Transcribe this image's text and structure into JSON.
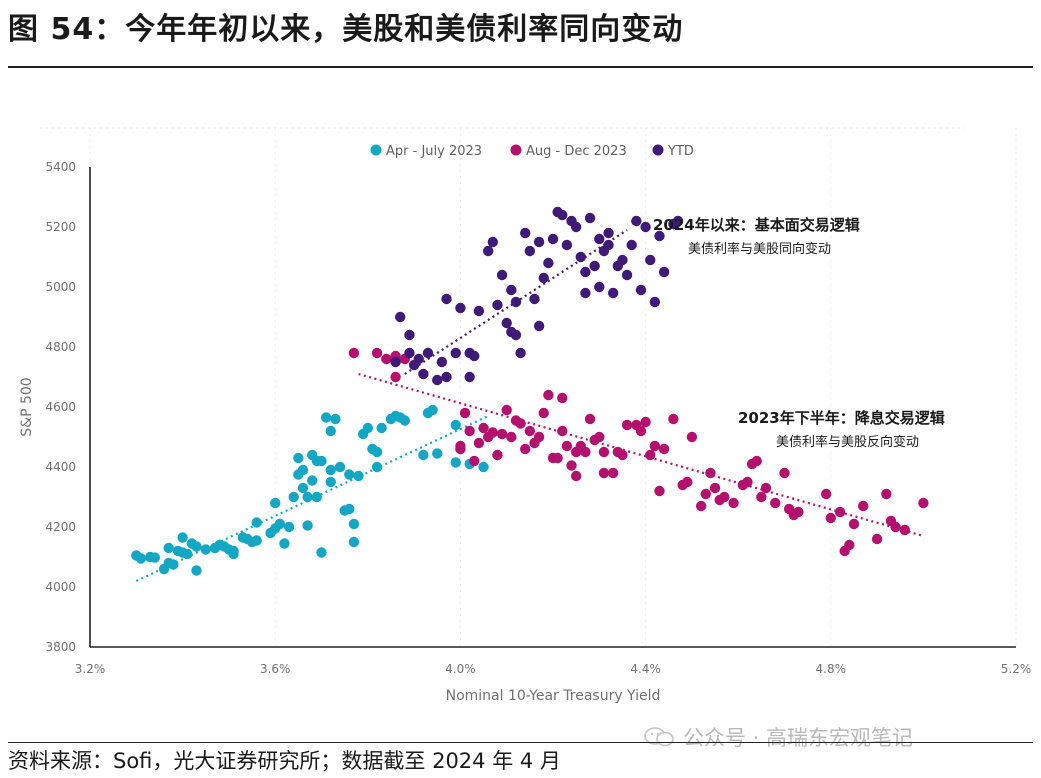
{
  "header": {
    "title": "图 54：今年年初以来，美股和美债利率同向变动"
  },
  "footer": {
    "source": "资料来源：Sofi，光大证券研究所；数据截至 2024 年 4 月",
    "watermark": "公众号 · 高瑞东宏观笔记"
  },
  "colors": {
    "series1": "#14a7c4",
    "series2": "#b3116d",
    "series3": "#3f1a78"
  },
  "chart_data": {
    "type": "scatter",
    "title": "",
    "xlabel": "Nominal 10-Year Treasury Yield",
    "ylabel": "S&P 500",
    "xlim": [
      3.2,
      5.2
    ],
    "ylim": [
      3800,
      5400
    ],
    "xticks": [
      3.2,
      3.6,
      4.0,
      4.4,
      4.8,
      5.2
    ],
    "xtick_labels": [
      "3.2%",
      "3.6%",
      "4.0%",
      "4.4%",
      "4.8%",
      "5.2%"
    ],
    "yticks": [
      3800,
      4000,
      4200,
      4400,
      4600,
      4800,
      5000,
      5200,
      5400
    ],
    "ytick_labels": [
      "3800",
      "4000",
      "4200",
      "4400",
      "4600",
      "4800",
      "5000",
      "5200",
      "5400"
    ],
    "legend": [
      "Apr - July 2023",
      "Aug - Dec 2023",
      "YTD"
    ],
    "series": [
      {
        "name": "Apr - July 2023",
        "points": [
          [
            3.3,
            4105
          ],
          [
            3.31,
            4095
          ],
          [
            3.33,
            4100
          ],
          [
            3.34,
            4098
          ],
          [
            3.36,
            4060
          ],
          [
            3.37,
            4130
          ],
          [
            3.37,
            4080
          ],
          [
            3.38,
            4075
          ],
          [
            3.39,
            4120
          ],
          [
            3.4,
            4115
          ],
          [
            3.4,
            4165
          ],
          [
            3.41,
            4110
          ],
          [
            3.42,
            4145
          ],
          [
            3.43,
            4135
          ],
          [
            3.43,
            4055
          ],
          [
            3.45,
            4125
          ],
          [
            3.47,
            4130
          ],
          [
            3.48,
            4140
          ],
          [
            3.49,
            4135
          ],
          [
            3.5,
            4125
          ],
          [
            3.51,
            4120
          ],
          [
            3.51,
            4110
          ],
          [
            3.53,
            4165
          ],
          [
            3.54,
            4160
          ],
          [
            3.55,
            4150
          ],
          [
            3.56,
            4155
          ],
          [
            3.56,
            4215
          ],
          [
            3.59,
            4180
          ],
          [
            3.6,
            4195
          ],
          [
            3.6,
            4280
          ],
          [
            3.61,
            4210
          ],
          [
            3.62,
            4145
          ],
          [
            3.63,
            4200
          ],
          [
            3.64,
            4300
          ],
          [
            3.65,
            4375
          ],
          [
            3.65,
            4430
          ],
          [
            3.66,
            4390
          ],
          [
            3.66,
            4330
          ],
          [
            3.67,
            4300
          ],
          [
            3.67,
            4205
          ],
          [
            3.68,
            4355
          ],
          [
            3.68,
            4440
          ],
          [
            3.69,
            4420
          ],
          [
            3.69,
            4300
          ],
          [
            3.7,
            4420
          ],
          [
            3.7,
            4115
          ],
          [
            3.71,
            4565
          ],
          [
            3.72,
            4350
          ],
          [
            3.72,
            4520
          ],
          [
            3.72,
            4390
          ],
          [
            3.73,
            4560
          ],
          [
            3.74,
            4400
          ],
          [
            3.75,
            4255
          ],
          [
            3.76,
            4260
          ],
          [
            3.76,
            4375
          ],
          [
            3.77,
            4210
          ],
          [
            3.77,
            4150
          ],
          [
            3.78,
            4370
          ],
          [
            3.79,
            4510
          ],
          [
            3.8,
            4530
          ],
          [
            3.81,
            4460
          ],
          [
            3.82,
            4450
          ],
          [
            3.82,
            4400
          ],
          [
            3.83,
            4530
          ],
          [
            3.85,
            4560
          ],
          [
            3.86,
            4570
          ],
          [
            3.87,
            4565
          ],
          [
            3.88,
            4555
          ],
          [
            3.92,
            4440
          ],
          [
            3.93,
            4580
          ],
          [
            3.94,
            4590
          ],
          [
            3.95,
            4445
          ],
          [
            3.99,
            4415
          ],
          [
            3.99,
            4540
          ],
          [
            4.02,
            4410
          ],
          [
            4.05,
            4400
          ]
        ]
      },
      {
        "name": "Aug - Dec 2023",
        "points": [
          [
            3.77,
            4780
          ],
          [
            3.82,
            4780
          ],
          [
            3.84,
            4760
          ],
          [
            3.86,
            4700
          ],
          [
            3.86,
            4770
          ],
          [
            3.88,
            4760
          ],
          [
            4.0,
            4470
          ],
          [
            4.0,
            4460
          ],
          [
            4.01,
            4580
          ],
          [
            4.02,
            4520
          ],
          [
            4.03,
            4420
          ],
          [
            4.04,
            4480
          ],
          [
            4.05,
            4530
          ],
          [
            4.06,
            4500
          ],
          [
            4.07,
            4515
          ],
          [
            4.08,
            4440
          ],
          [
            4.09,
            4510
          ],
          [
            4.1,
            4590
          ],
          [
            4.11,
            4500
          ],
          [
            4.12,
            4555
          ],
          [
            4.13,
            4545
          ],
          [
            4.14,
            4460
          ],
          [
            4.15,
            4520
          ],
          [
            4.16,
            4480
          ],
          [
            4.17,
            4500
          ],
          [
            4.18,
            4580
          ],
          [
            4.19,
            4640
          ],
          [
            4.2,
            4430
          ],
          [
            4.21,
            4430
          ],
          [
            4.22,
            4520
          ],
          [
            4.22,
            4630
          ],
          [
            4.23,
            4470
          ],
          [
            4.24,
            4405
          ],
          [
            4.25,
            4370
          ],
          [
            4.25,
            4450
          ],
          [
            4.26,
            4470
          ],
          [
            4.27,
            4450
          ],
          [
            4.28,
            4560
          ],
          [
            4.29,
            4490
          ],
          [
            4.3,
            4500
          ],
          [
            4.31,
            4450
          ],
          [
            4.31,
            4380
          ],
          [
            4.33,
            4380
          ],
          [
            4.34,
            4450
          ],
          [
            4.35,
            4440
          ],
          [
            4.36,
            4540
          ],
          [
            4.38,
            4540
          ],
          [
            4.39,
            4520
          ],
          [
            4.4,
            4550
          ],
          [
            4.41,
            4440
          ],
          [
            4.42,
            4470
          ],
          [
            4.43,
            4320
          ],
          [
            4.44,
            4460
          ],
          [
            4.46,
            4560
          ],
          [
            4.48,
            4340
          ],
          [
            4.49,
            4350
          ],
          [
            4.5,
            4500
          ],
          [
            4.52,
            4270
          ],
          [
            4.53,
            4310
          ],
          [
            4.54,
            4380
          ],
          [
            4.55,
            4330
          ],
          [
            4.56,
            4290
          ],
          [
            4.57,
            4300
          ],
          [
            4.59,
            4280
          ],
          [
            4.61,
            4340
          ],
          [
            4.62,
            4350
          ],
          [
            4.63,
            4410
          ],
          [
            4.64,
            4420
          ],
          [
            4.65,
            4300
          ],
          [
            4.66,
            4330
          ],
          [
            4.68,
            4280
          ],
          [
            4.7,
            4380
          ],
          [
            4.71,
            4260
          ],
          [
            4.72,
            4240
          ],
          [
            4.73,
            4250
          ],
          [
            4.79,
            4310
          ],
          [
            4.8,
            4230
          ],
          [
            4.82,
            4250
          ],
          [
            4.83,
            4120
          ],
          [
            4.84,
            4140
          ],
          [
            4.85,
            4210
          ],
          [
            4.87,
            4270
          ],
          [
            4.9,
            4160
          ],
          [
            4.92,
            4310
          ],
          [
            4.93,
            4220
          ],
          [
            4.94,
            4200
          ],
          [
            4.96,
            4190
          ],
          [
            5.0,
            4280
          ]
        ]
      },
      {
        "name": "YTD",
        "points": [
          [
            3.86,
            4750
          ],
          [
            3.87,
            4900
          ],
          [
            3.89,
            4780
          ],
          [
            3.89,
            4840
          ],
          [
            3.9,
            4740
          ],
          [
            3.91,
            4760
          ],
          [
            3.92,
            4710
          ],
          [
            3.93,
            4780
          ],
          [
            3.95,
            4690
          ],
          [
            3.96,
            4750
          ],
          [
            3.97,
            4700
          ],
          [
            3.97,
            4960
          ],
          [
            3.99,
            4780
          ],
          [
            4.0,
            4930
          ],
          [
            4.02,
            4700
          ],
          [
            4.02,
            4780
          ],
          [
            4.03,
            4770
          ],
          [
            4.04,
            4920
          ],
          [
            4.06,
            5120
          ],
          [
            4.07,
            5150
          ],
          [
            4.08,
            4940
          ],
          [
            4.09,
            5040
          ],
          [
            4.1,
            4880
          ],
          [
            4.11,
            4850
          ],
          [
            4.11,
            4990
          ],
          [
            4.12,
            4840
          ],
          [
            4.12,
            4950
          ],
          [
            4.13,
            4780
          ],
          [
            4.14,
            5180
          ],
          [
            4.15,
            5120
          ],
          [
            4.16,
            4960
          ],
          [
            4.17,
            5150
          ],
          [
            4.17,
            4870
          ],
          [
            4.18,
            5030
          ],
          [
            4.19,
            5080
          ],
          [
            4.2,
            5160
          ],
          [
            4.21,
            5250
          ],
          [
            4.22,
            5240
          ],
          [
            4.23,
            5140
          ],
          [
            4.24,
            5220
          ],
          [
            4.25,
            5200
          ],
          [
            4.26,
            5100
          ],
          [
            4.27,
            5050
          ],
          [
            4.27,
            4980
          ],
          [
            4.28,
            5230
          ],
          [
            4.29,
            5070
          ],
          [
            4.3,
            5160
          ],
          [
            4.3,
            5000
          ],
          [
            4.31,
            5120
          ],
          [
            4.32,
            5180
          ],
          [
            4.32,
            5140
          ],
          [
            4.33,
            4980
          ],
          [
            4.34,
            5070
          ],
          [
            4.35,
            5090
          ],
          [
            4.36,
            5040
          ],
          [
            4.37,
            5140
          ],
          [
            4.38,
            5220
          ],
          [
            4.39,
            4990
          ],
          [
            4.4,
            5200
          ],
          [
            4.41,
            5090
          ],
          [
            4.42,
            4950
          ],
          [
            4.43,
            5170
          ],
          [
            4.44,
            5050
          ],
          [
            4.46,
            5210
          ],
          [
            4.47,
            5220
          ]
        ]
      }
    ],
    "trendlines": [
      {
        "series": "Apr - July 2023",
        "from": [
          3.3,
          4020
        ],
        "to": [
          4.06,
          4570
        ]
      },
      {
        "series": "Aug - Dec 2023",
        "from": [
          3.78,
          4710
        ],
        "to": [
          5.0,
          4170
        ]
      },
      {
        "series": "YTD",
        "from": [
          3.88,
          4710
        ],
        "to": [
          4.36,
          5190
        ]
      }
    ],
    "annotations": [
      {
        "title": "2024年以来：基本面交易逻辑",
        "subtitle": "美债利率与美股同向变动"
      },
      {
        "title": "2023年下半年：降息交易逻辑",
        "subtitle": "美债利率与美股反向变动"
      }
    ]
  }
}
